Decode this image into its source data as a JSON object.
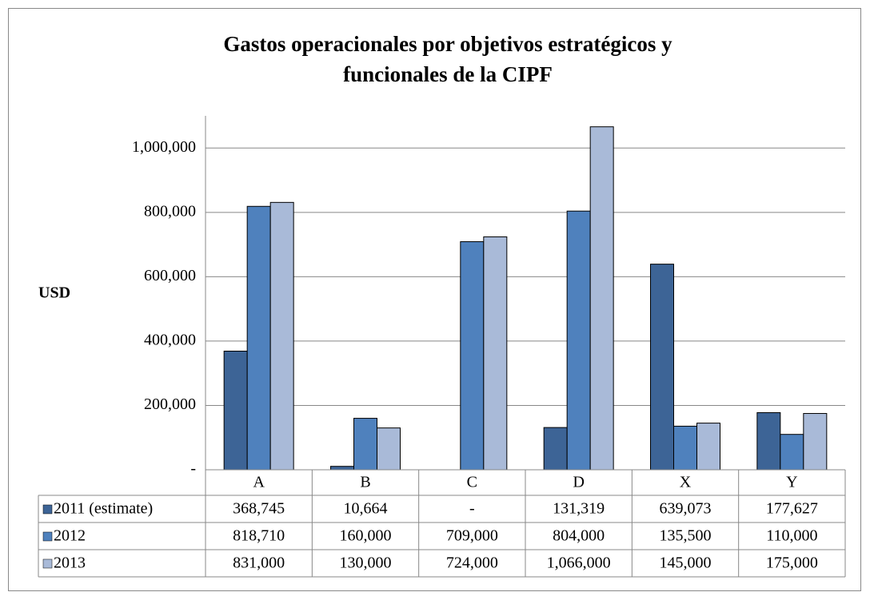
{
  "chart_data": {
    "type": "bar",
    "title": [
      "Gastos operacionales por objetivos estratégicos y",
      "funcionales de la CIPF"
    ],
    "y_label": "USD",
    "categories": [
      "A",
      "B",
      "C",
      "D",
      "X",
      "Y"
    ],
    "series": [
      {
        "name": "2011 (estimate)",
        "color": "#3d6496",
        "values": [
          368745,
          10664,
          0,
          131319,
          639073,
          177627
        ],
        "value_labels": [
          "368,745",
          "10,664",
          "-",
          "131,319",
          "639,073",
          "177,627"
        ]
      },
      {
        "name": "2012",
        "color": "#4f81bd",
        "values": [
          818710,
          160000,
          709000,
          804000,
          135500,
          110000
        ],
        "value_labels": [
          "818,710",
          "160,000",
          "709,000",
          "804,000",
          "135,500",
          "110,000"
        ]
      },
      {
        "name": "2013",
        "color": "#a9bad8",
        "values": [
          831000,
          130000,
          724000,
          1066000,
          145000,
          175000
        ],
        "value_labels": [
          "831,000",
          "130,000",
          "724,000",
          "1,066,000",
          "145,000",
          "175,000"
        ]
      }
    ],
    "ylim": [
      0,
      1100000
    ],
    "yticks": [
      {
        "value": 0,
        "label": "-"
      },
      {
        "value": 200000,
        "label": "200,000"
      },
      {
        "value": 400000,
        "label": "400,000"
      },
      {
        "value": 600000,
        "label": "600,000"
      },
      {
        "value": 800000,
        "label": "800,000"
      },
      {
        "value": 1000000,
        "label": "1,000,000"
      }
    ],
    "grid": true
  }
}
